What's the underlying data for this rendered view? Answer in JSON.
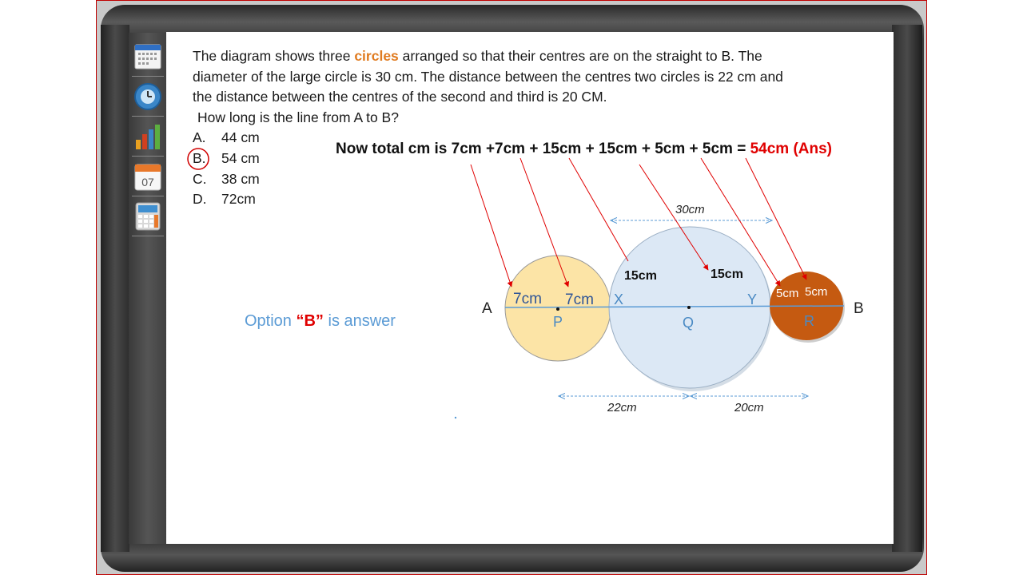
{
  "question": {
    "line1_pre": "The diagram shows three ",
    "line1_highlight": "circles",
    "line1_post": " arranged so that their centres are on the straight to B. The",
    "line2": "diameter of the large circle is 30 cm. The distance between the centres two circles is 22 cm and",
    "line3": "the distance between the centres of the second and third is 20 CM.",
    "line4": "How long is the line from A to B?"
  },
  "options": [
    {
      "letter": "A.",
      "text": "44 cm",
      "selected": false
    },
    {
      "letter": "B.",
      "text": "54 cm",
      "selected": true
    },
    {
      "letter": "C.",
      "text": "38 cm",
      "selected": false
    },
    {
      "letter": "D.",
      "text": "72cm",
      "selected": false
    }
  ],
  "solution": {
    "total_text": "Now total cm is 7cm +7cm + 15cm + 15cm + 5cm + 5cm = ",
    "answer_text": "54cm (Ans)",
    "option_pre": "Option ",
    "option_letter": "“B”",
    "option_post": " is answer"
  },
  "diagram": {
    "end_left": "A",
    "end_right": "B",
    "circle_small": {
      "center_label": "P",
      "radius_labels": [
        "7cm",
        "7cm"
      ],
      "color": "#fce4a6"
    },
    "circle_large": {
      "center_label": "Q",
      "radius_labels": [
        "15cm",
        "15cm"
      ],
      "color": "#dce8f5",
      "left_point": "X",
      "right_point": "Y",
      "diameter_label": "30cm"
    },
    "circle_right": {
      "center_label": "R",
      "radius_labels": [
        "5cm",
        "5cm"
      ],
      "color": "#c55a11"
    },
    "distance_pq": "22cm",
    "distance_qr": "20cm"
  },
  "toolbar": {
    "icons": [
      "calendar-grid-icon",
      "clock-icon",
      "bar-chart-icon",
      "calendar-day-icon",
      "calculator-icon"
    ],
    "calendar_day": "07"
  },
  "colors": {
    "accent_red": "#e00000",
    "highlight_orange": "#e07b20",
    "option_blue": "#5b9bd5",
    "diagram_blue": "#4472c4"
  }
}
